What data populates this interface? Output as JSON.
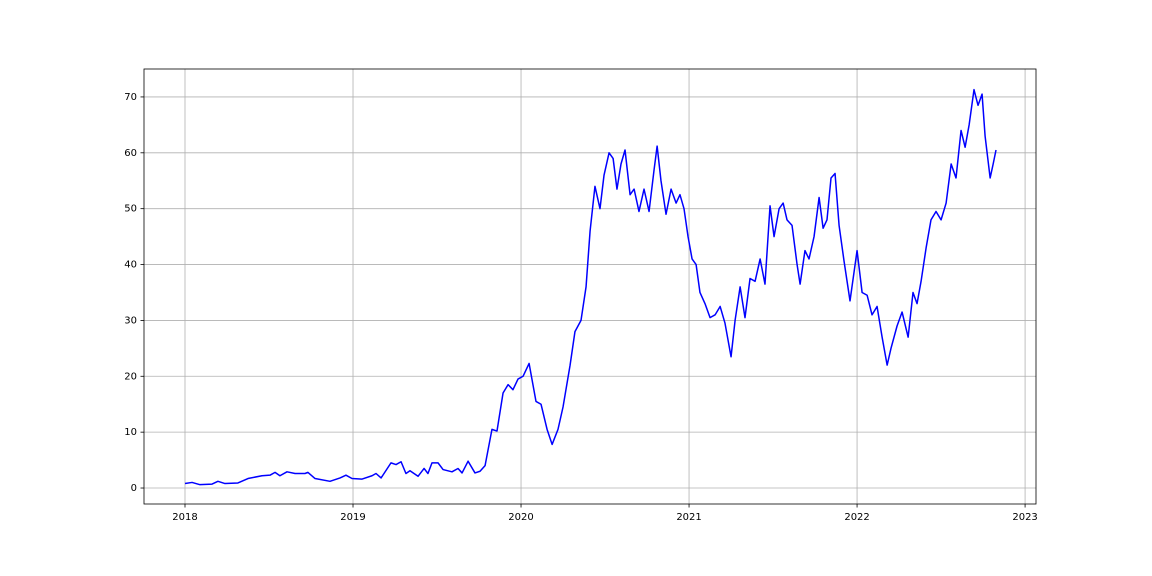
{
  "chart_data": {
    "type": "line",
    "x": [
      2018.0,
      2018.042,
      2018.089,
      2018.161,
      2018.196,
      2018.238,
      2018.315,
      2018.375,
      2018.458,
      2018.506,
      2018.536,
      2018.565,
      2018.607,
      2018.655,
      2018.714,
      2018.732,
      2018.774,
      2018.863,
      2018.923,
      2018.958,
      2018.994,
      2019.054,
      2019.113,
      2019.137,
      2019.167,
      2019.226,
      2019.256,
      2019.286,
      2019.315,
      2019.339,
      2019.387,
      2019.423,
      2019.446,
      2019.47,
      2019.506,
      2019.536,
      2019.589,
      2019.625,
      2019.649,
      2019.685,
      2019.726,
      2019.756,
      2019.786,
      2019.827,
      2019.857,
      2019.893,
      2019.923,
      2019.952,
      2019.982,
      2020.012,
      2020.048,
      2020.089,
      2020.119,
      2020.155,
      2020.185,
      2020.22,
      2020.25,
      2020.292,
      2020.321,
      2020.357,
      2020.387,
      2020.411,
      2020.44,
      2020.47,
      2020.494,
      2020.524,
      2020.548,
      2020.571,
      2020.595,
      2020.619,
      2020.649,
      2020.673,
      2020.702,
      2020.732,
      2020.762,
      2020.792,
      2020.81,
      2020.833,
      2020.863,
      2020.893,
      2020.923,
      2020.946,
      2020.97,
      2020.994,
      2021.018,
      2021.042,
      2021.065,
      2021.095,
      2021.125,
      2021.155,
      2021.185,
      2021.214,
      2021.25,
      2021.274,
      2021.304,
      2021.333,
      2021.363,
      2021.393,
      2021.423,
      2021.452,
      2021.482,
      2021.506,
      2021.536,
      2021.56,
      2021.583,
      2021.613,
      2021.643,
      2021.661,
      2021.69,
      2021.714,
      2021.744,
      2021.774,
      2021.798,
      2021.821,
      2021.845,
      2021.869,
      2021.893,
      2021.923,
      2021.958,
      2022.0,
      2022.03,
      2022.06,
      2022.089,
      2022.119,
      2022.149,
      2022.179,
      2022.202,
      2022.238,
      2022.268,
      2022.304,
      2022.333,
      2022.357,
      2022.381,
      2022.411,
      2022.44,
      2022.47,
      2022.5,
      2022.53,
      2022.56,
      2022.589,
      2022.619,
      2022.643,
      2022.667,
      2022.696,
      2022.72,
      2022.744,
      2022.762,
      2022.792,
      2022.81,
      2022.827
    ],
    "series": [
      {
        "color": "#0000ff",
        "values": [
          0.8,
          1.0,
          0.6,
          0.7,
          1.2,
          0.8,
          0.9,
          1.7,
          2.2,
          2.3,
          2.8,
          2.2,
          2.9,
          2.6,
          2.6,
          2.8,
          1.7,
          1.2,
          1.8,
          2.3,
          1.7,
          1.6,
          2.2,
          2.6,
          1.8,
          4.5,
          4.2,
          4.7,
          2.6,
          3.1,
          2.1,
          3.5,
          2.6,
          4.5,
          4.5,
          3.3,
          2.9,
          3.5,
          2.7,
          4.8,
          2.7,
          3.0,
          4.0,
          10.5,
          10.2,
          17,
          18.5,
          17.6,
          19.5,
          20,
          22.3,
          15.5,
          15.0,
          10.5,
          7.8,
          10.5,
          14.5,
          22,
          28,
          30,
          36,
          46,
          54,
          50,
          56,
          60,
          59,
          53.5,
          58,
          60.5,
          52.5,
          53.5,
          49.5,
          53.5,
          49.5,
          57,
          61.2,
          55,
          49,
          53.5,
          51,
          52.5,
          50,
          45,
          41,
          40,
          35,
          33,
          30.5,
          31,
          32.5,
          29.5,
          23.5,
          30,
          36,
          30.5,
          37.5,
          37,
          41,
          36.5,
          50.5,
          45,
          50,
          51,
          48,
          47,
          40,
          36.5,
          42.5,
          41,
          45,
          52,
          46.5,
          48,
          55.5,
          56.3,
          47,
          40.5,
          33.5,
          42.5,
          35,
          34.5,
          31,
          32.5,
          27,
          22,
          25,
          29,
          31.5,
          27,
          35,
          33,
          37,
          43,
          48,
          49.5,
          48,
          51,
          58,
          55.5,
          64,
          61,
          65,
          71.3,
          68.5,
          70.5,
          63,
          55.5,
          58,
          60.5
        ]
      }
    ],
    "xlim": [
      2017.756,
      2023.065
    ],
    "xticks": [
      2018,
      2019,
      2020,
      2021,
      2022,
      2023
    ],
    "ylim": [
      -2.86,
      75.0
    ],
    "yticks": [
      0,
      10,
      20,
      30,
      40,
      50,
      60,
      70
    ],
    "grid": true
  }
}
